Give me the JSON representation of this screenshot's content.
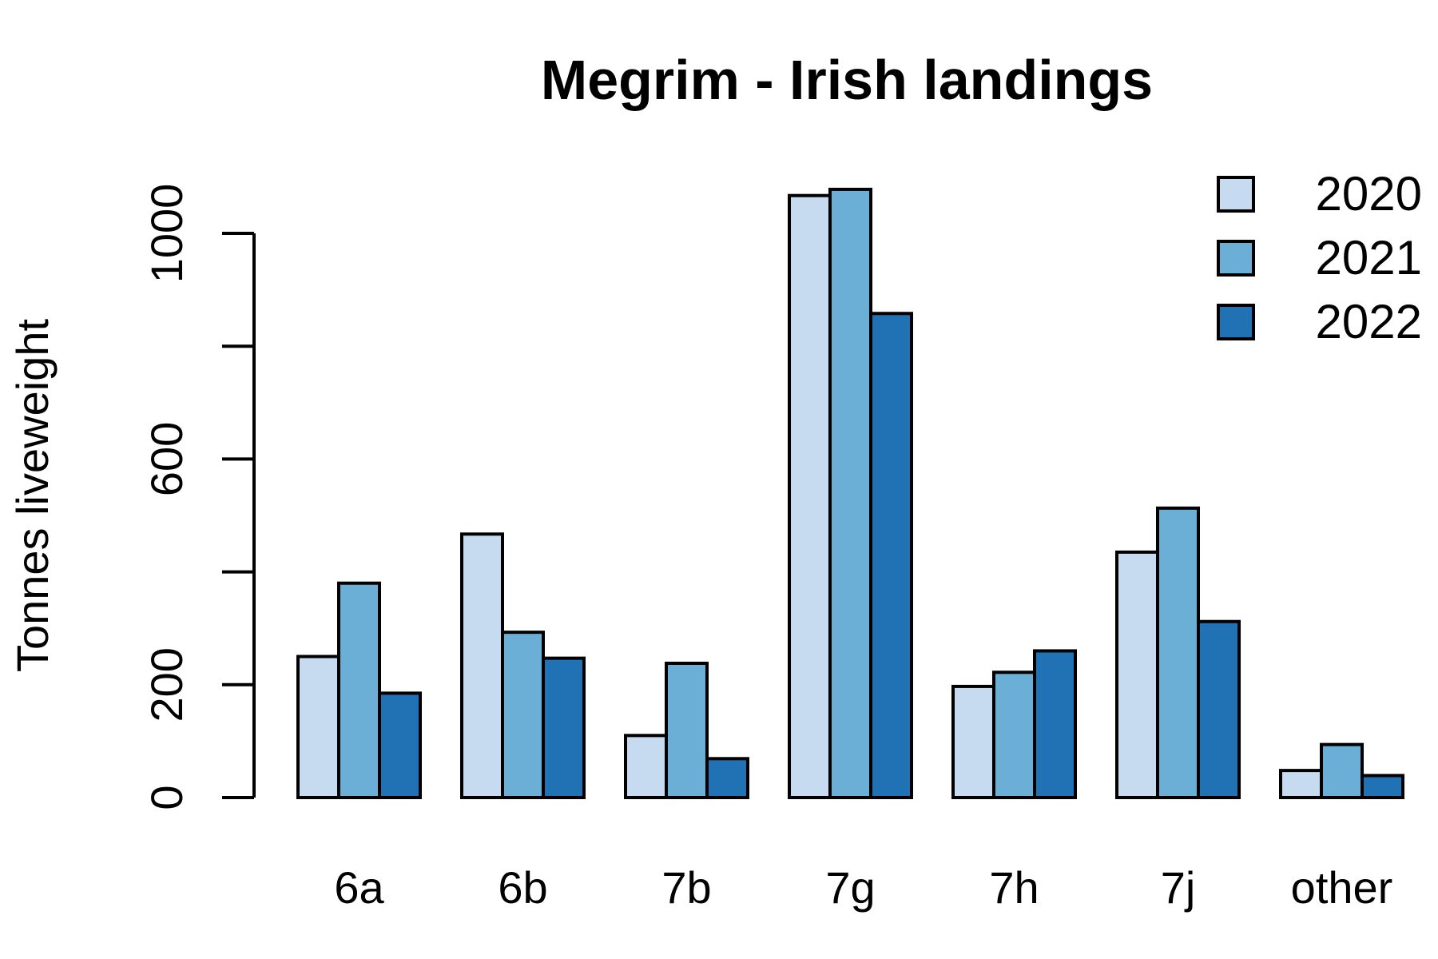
{
  "chart_data": {
    "type": "bar",
    "title": "Megrim - Irish landings",
    "xlabel": "",
    "ylabel": "Tonnes liveweight",
    "categories": [
      "6a",
      "6b",
      "7b",
      "7g",
      "7h",
      "7j",
      "other"
    ],
    "series": [
      {
        "name": "2020",
        "color": "#c6dbef",
        "values": [
          250,
          467,
          110,
          1067,
          197,
          435,
          48
        ]
      },
      {
        "name": "2021",
        "color": "#6baed6",
        "values": [
          380,
          293,
          238,
          1078,
          222,
          513,
          94
        ]
      },
      {
        "name": "2022",
        "color": "#2171b5",
        "values": [
          185,
          247,
          69,
          858,
          260,
          312,
          39
        ]
      }
    ],
    "yticks": [
      0,
      200,
      400,
      600,
      800,
      1000
    ],
    "ytick_labels": [
      "0",
      "200",
      "",
      "600",
      "",
      "1000"
    ],
    "ylim": [
      0,
      1100
    ],
    "grid": false,
    "legend_position": "top-right"
  }
}
